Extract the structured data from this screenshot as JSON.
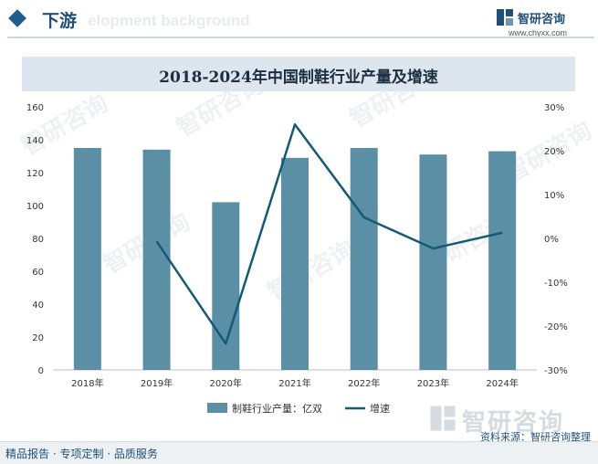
{
  "header": {
    "title": "下游",
    "watermark_text": "elopment background",
    "brand_name": "智研咨询",
    "brand_url": "www.chyxx.com"
  },
  "footer": {
    "left_text": "精品报告 · 专项定制 · 品质服务",
    "source_text": "资料来源：智研咨询整理",
    "watermark_brand": "智研咨询"
  },
  "colors": {
    "bar": "#5a8fa6",
    "line": "#145a78",
    "title_band": "#dde6ee",
    "brand": "#1f4f78"
  },
  "chart_data": {
    "type": "bar",
    "title": "2018-2024年中国制鞋行业产量及增速",
    "categories": [
      "2018年",
      "2019年",
      "2020年",
      "2021年",
      "2022年",
      "2023年",
      "2024年"
    ],
    "series": [
      {
        "name": "制鞋行业产量：亿双",
        "type": "bar",
        "axis": "left",
        "values": [
          135,
          134,
          102,
          129,
          135,
          131,
          133
        ]
      },
      {
        "name": "增速",
        "type": "line",
        "axis": "right",
        "values": [
          null,
          -0.7,
          -24,
          26,
          4.8,
          -2.3,
          1.3
        ]
      }
    ],
    "y_left": {
      "min": 0,
      "max": 160,
      "ticks": [
        "0",
        "20",
        "40",
        "60",
        "80",
        "100",
        "120",
        "140",
        "160"
      ]
    },
    "y_right": {
      "min": -30,
      "max": 30,
      "ticks": [
        "-30%",
        "-20%",
        "-10%",
        "0%",
        "10%",
        "20%",
        "30%"
      ]
    },
    "grid": false,
    "legend_position": "bottom"
  }
}
